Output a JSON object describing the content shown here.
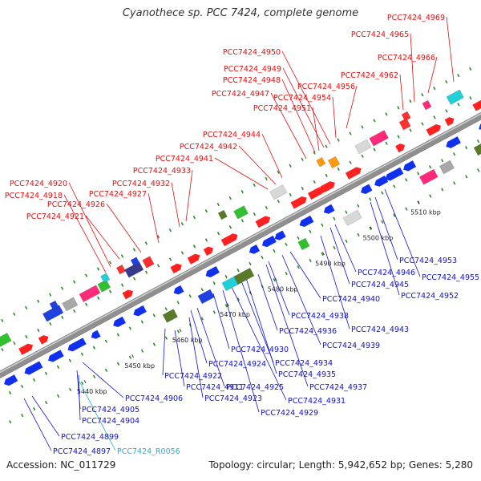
{
  "title": "Cyanothece sp. PCC 7424, complete genome",
  "footer": {
    "accession": "Accession: NC_011729",
    "summary": "Topology: circular; Length: 5,942,652 bp; Genes: 5,280"
  },
  "colors": {
    "forward_label": "#e01010",
    "reverse_label": "#1010d0",
    "rna_label": "#20b0d0",
    "backbone": "#8a8a8a",
    "tick": "#2a8a2a"
  },
  "scale": [
    {
      "label": "5440 kbp",
      "kb": 5440
    },
    {
      "label": "5450 kbp",
      "kb": 5450
    },
    {
      "label": "5460 kbp",
      "kb": 5460
    },
    {
      "label": "5470 kbp",
      "kb": 5470
    },
    {
      "label": "5480 kbp",
      "kb": 5480
    },
    {
      "label": "5490 kbp",
      "kb": 5490
    },
    {
      "label": "5500 kbp",
      "kb": 5500
    },
    {
      "label": "5510 kbp",
      "kb": 5510
    }
  ],
  "forward_genes": [
    "PCC7424_4918",
    "PCC7424_4920",
    "PCC7424_4921",
    "PCC7424_4926",
    "PCC7424_4927",
    "PCC7424_4932",
    "PCC7424_4933",
    "PCC7424_4941",
    "PCC7424_4942",
    "PCC7424_4944",
    "PCC7424_4947",
    "PCC7424_4948",
    "PCC7424_4949",
    "PCC7424_4950",
    "PCC7424_4951",
    "PCC7424_4954",
    "PCC7424_4956",
    "PCC7424_4962",
    "PCC7424_4965",
    "PCC7424_4966",
    "PCC7424_4969"
  ],
  "reverse_genes": [
    "PCC7424_4897",
    "PCC7424_4899",
    "PCC7424_4904",
    "PCC7424_4905",
    "PCC7424_4906",
    "PCC7424_4911",
    "PCC7424_4922",
    "PCC7424_4923",
    "PCC7424_4924",
    "PCC7424_4925",
    "PCC7424_4929",
    "PCC7424_4930",
    "PCC7424_4931",
    "PCC7424_4934",
    "PCC7424_4935",
    "PCC7424_4936",
    "PCC7424_4937",
    "PCC7424_4938",
    "PCC7424_4939",
    "PCC7424_4940",
    "PCC7424_4943",
    "PCC7424_4945",
    "PCC7424_4946",
    "PCC7424_4952",
    "PCC7424_4953",
    "PCC7424_4955"
  ],
  "rna_genes": [
    "PCC7424_R0056"
  ]
}
